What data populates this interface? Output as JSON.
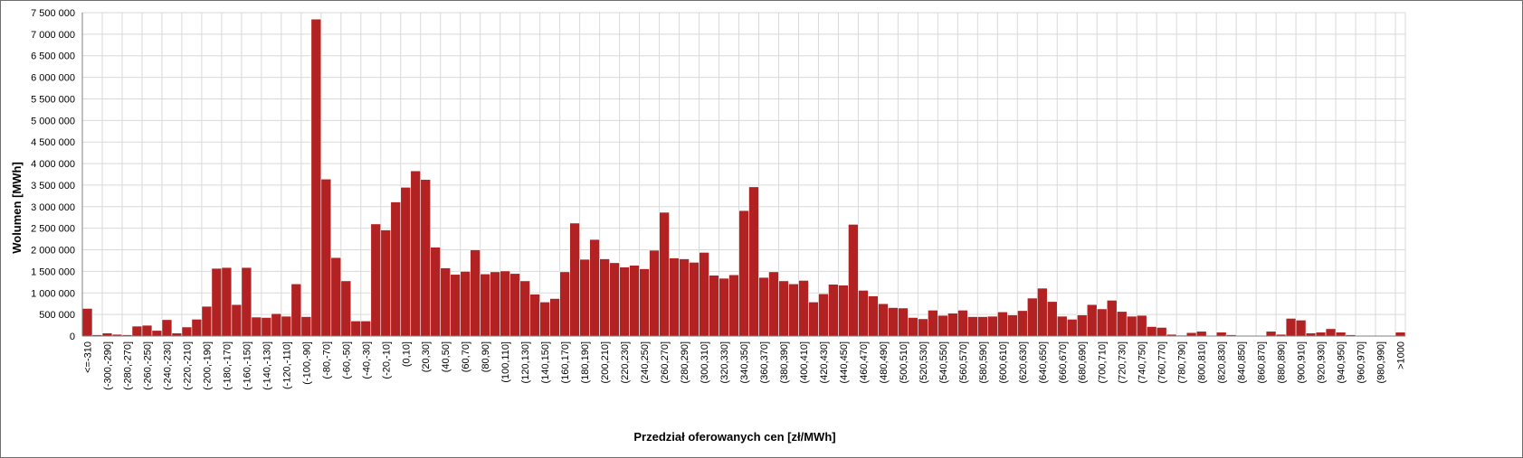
{
  "chart_data": {
    "type": "bar",
    "title": "",
    "xlabel": "Przedział oferowanych cen [zł/MWh]",
    "ylabel": "Wolumen [MWh]",
    "ylim": [
      0,
      7500000
    ],
    "ytick_step": 500000,
    "ytick_labels": [
      "0",
      "500 000",
      "1 000 000",
      "1 500 000",
      "2 000 000",
      "2 500 000",
      "3 000 000",
      "3 500 000",
      "4 000 000",
      "4 500 000",
      "5 000 000",
      "5 500 000",
      "6 000 000",
      "6 500 000",
      "7 000 000",
      "7 500 000"
    ],
    "grid": true,
    "legend": "none",
    "bar_color": "#b22222",
    "categories": [
      "<=-310",
      "(-310,-300]",
      "(-300,-290]",
      "(-290,-280]",
      "(-280,-270]",
      "(-270,-260]",
      "(-260,-250]",
      "(-250,-240]",
      "(-240,-230]",
      "(-230,-220]",
      "(-220,-210]",
      "(-210,-200]",
      "(-200,-190]",
      "(-190,-180]",
      "(-180,-170]",
      "(-170,-160]",
      "(-160,-150]",
      "(-150,-140]",
      "(-140,-130]",
      "(-130,-120]",
      "(-120,-110]",
      "(-110,-100]",
      "(-100,-90]",
      "(-90,-80]",
      "(-80,-70]",
      "(-70,-60]",
      "(-60,-50]",
      "(-50,-40]",
      "(-40,-30]",
      "(-30,-20]",
      "(-20,-10]",
      "(-10,0]",
      "(0,10]",
      "(10,20]",
      "(20,30]",
      "(30,40]",
      "(40,50]",
      "(50,60]",
      "(60,70]",
      "(70,80]",
      "(80,90]",
      "(90,100]",
      "(100,110]",
      "(110,120]",
      "(120,130]",
      "(130,140]",
      "(140,150]",
      "(150,160]",
      "(160,170]",
      "(170,180]",
      "(180,190]",
      "(190,200]",
      "(200,210]",
      "(210,220]",
      "(220,230]",
      "(230,240]",
      "(240,250]",
      "(250,260]",
      "(260,270]",
      "(270,280]",
      "(280,290]",
      "(290,300]",
      "(300,310]",
      "(310,320]",
      "(320,330]",
      "(330,340]",
      "(340,350]",
      "(350,360]",
      "(360,370]",
      "(370,380]",
      "(380,390]",
      "(390,400]",
      "(400,410]",
      "(410,420]",
      "(420,430]",
      "(430,440]",
      "(440,450]",
      "(450,460]",
      "(460,470]",
      "(470,480]",
      "(480,490]",
      "(490,500]",
      "(500,510]",
      "(510,520]",
      "(520,530]",
      "(530,540]",
      "(540,550]",
      "(550,560]",
      "(560,570]",
      "(570,580]",
      "(580,590]",
      "(590,600]",
      "(600,610]",
      "(610,620]",
      "(620,630]",
      "(630,640]",
      "(640,650]",
      "(650,660]",
      "(660,670]",
      "(670,680]",
      "(680,690]",
      "(690,700]",
      "(700,710]",
      "(710,720]",
      "(720,730]",
      "(730,740]",
      "(740,750]",
      "(750,760]",
      "(760,770]",
      "(770,780]",
      "(780,790]",
      "(790,800]",
      "(800,810]",
      "(810,820]",
      "(820,830]",
      "(830,840]",
      "(840,850]",
      "(850,860]",
      "(860,870]",
      "(870,880]",
      "(880,890]",
      "(890,900]",
      "(900,910]",
      "(910,920]",
      "(920,930]",
      "(930,940]",
      "(940,950]",
      "(950,960]",
      "(960,970]",
      "(970,980]",
      "(980,990]",
      "(990,1000]",
      ">1000"
    ],
    "values": [
      640000,
      30000,
      70000,
      40000,
      30000,
      230000,
      250000,
      130000,
      380000,
      70000,
      210000,
      390000,
      690000,
      1570000,
      1590000,
      730000,
      1590000,
      440000,
      430000,
      520000,
      460000,
      1210000,
      450000,
      7350000,
      3640000,
      1820000,
      1280000,
      350000,
      350000,
      2600000,
      2460000,
      3110000,
      3450000,
      3830000,
      3630000,
      2060000,
      1580000,
      1430000,
      1500000,
      2000000,
      1440000,
      1490000,
      1510000,
      1450000,
      1280000,
      970000,
      790000,
      870000,
      1490000,
      2620000,
      1780000,
      2240000,
      1790000,
      1700000,
      1600000,
      1640000,
      1560000,
      1990000,
      2870000,
      1810000,
      1790000,
      1710000,
      1940000,
      1410000,
      1340000,
      1420000,
      2910000,
      3460000,
      1360000,
      1490000,
      1280000,
      1210000,
      1290000,
      790000,
      980000,
      1200000,
      1180000,
      2590000,
      1060000,
      930000,
      750000,
      660000,
      650000,
      430000,
      400000,
      600000,
      480000,
      530000,
      600000,
      450000,
      450000,
      460000,
      560000,
      490000,
      590000,
      880000,
      1110000,
      800000,
      460000,
      390000,
      490000,
      730000,
      630000,
      830000,
      570000,
      460000,
      480000,
      220000,
      200000,
      40000,
      20000,
      80000,
      110000,
      0,
      90000,
      30000,
      0,
      0,
      0,
      110000,
      40000,
      410000,
      370000,
      70000,
      90000,
      170000,
      90000,
      30000,
      0,
      0,
      0,
      0,
      90000
    ]
  }
}
